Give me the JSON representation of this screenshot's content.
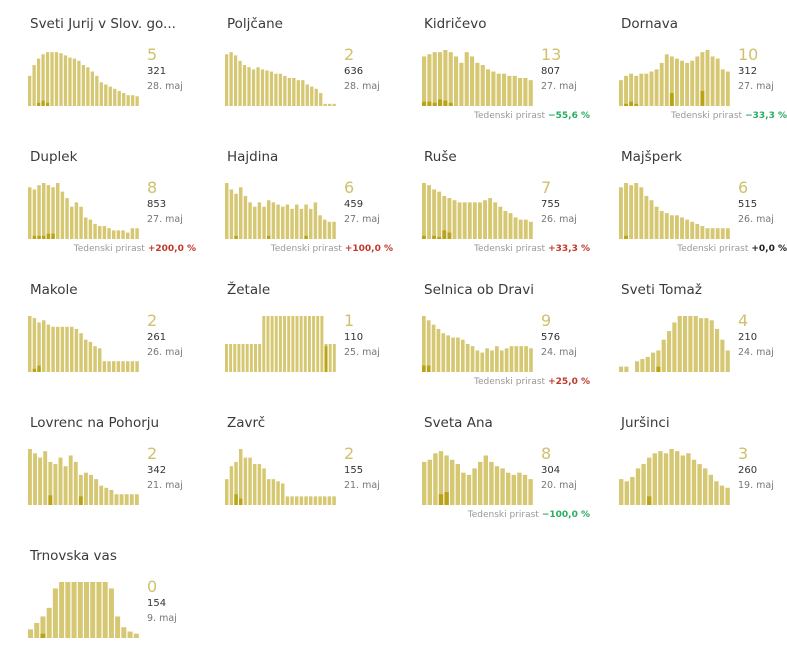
{
  "growth_label": "Tedenski prirast",
  "colors": {
    "bar": "#d6c772",
    "bar_dark": "#b9a418",
    "number": "#d1c06c"
  },
  "municipalities": [
    {
      "name": "Sveti Jurij v Slov. go...",
      "value": "5",
      "total": "321",
      "date": "28. maj",
      "growth": "",
      "bars": [
        28,
        38,
        44,
        48,
        50,
        50,
        50,
        49,
        47,
        45,
        44,
        42,
        38,
        36,
        32,
        28,
        22,
        20,
        18,
        16,
        14,
        12,
        10,
        10,
        9
      ],
      "dark": [
        0,
        0,
        3,
        5,
        3,
        0,
        0,
        0,
        0,
        0,
        0,
        0,
        0,
        0,
        0,
        0,
        0,
        0,
        0,
        0,
        0,
        0,
        0,
        0,
        0
      ]
    },
    {
      "name": "Poljčane",
      "value": "2",
      "total": "636",
      "date": "28. maj",
      "growth": "",
      "bars": [
        48,
        50,
        47,
        42,
        38,
        36,
        34,
        36,
        34,
        33,
        32,
        30,
        30,
        28,
        26,
        26,
        24,
        24,
        20,
        18,
        16,
        12,
        2,
        2,
        2
      ],
      "dark": [
        0,
        0,
        0,
        0,
        0,
        0,
        0,
        0,
        0,
        0,
        0,
        0,
        0,
        0,
        0,
        0,
        0,
        0,
        0,
        0,
        0,
        0,
        0,
        0,
        0
      ]
    },
    {
      "name": "Kidričevo",
      "value": "13",
      "total": "807",
      "date": "27. maj",
      "growth": "−55,6 %",
      "growth_class": "neg",
      "bars": [
        46,
        48,
        50,
        50,
        52,
        50,
        46,
        40,
        50,
        46,
        40,
        38,
        34,
        32,
        30,
        30,
        28,
        28,
        26,
        26,
        24
      ],
      "dark": [
        4,
        4,
        3,
        6,
        5,
        3,
        0,
        0,
        0,
        0,
        0,
        0,
        0,
        0,
        0,
        0,
        0,
        0,
        0,
        0,
        0
      ]
    },
    {
      "name": "Dornava",
      "value": "10",
      "total": "312",
      "date": "27. maj",
      "growth": "−33,3 %",
      "growth_class": "neg",
      "bars": [
        24,
        28,
        30,
        28,
        30,
        30,
        32,
        34,
        40,
        48,
        46,
        44,
        42,
        40,
        42,
        46,
        50,
        52,
        46,
        44,
        34,
        32
      ],
      "dark": [
        0,
        2,
        4,
        2,
        0,
        0,
        0,
        0,
        0,
        0,
        12,
        0,
        0,
        0,
        0,
        0,
        14,
        0,
        0,
        0,
        0,
        0
      ]
    },
    {
      "name": "Duplek",
      "value": "8",
      "total": "853",
      "date": "27. maj",
      "growth": "+200,0 %",
      "growth_class": "pos",
      "bars": [
        48,
        46,
        50,
        52,
        50,
        48,
        52,
        44,
        38,
        30,
        34,
        30,
        20,
        18,
        14,
        12,
        12,
        10,
        8,
        8,
        8,
        6,
        10,
        10
      ],
      "dark": [
        0,
        3,
        3,
        3,
        5,
        5,
        0,
        0,
        0,
        0,
        0,
        0,
        0,
        0,
        0,
        0,
        0,
        0,
        0,
        0,
        0,
        0,
        0,
        0
      ]
    },
    {
      "name": "Hajdina",
      "value": "6",
      "total": "459",
      "date": "27. maj",
      "growth": "+100,0 %",
      "growth_class": "pos",
      "bars": [
        52,
        46,
        42,
        48,
        40,
        34,
        30,
        34,
        30,
        36,
        34,
        32,
        30,
        32,
        28,
        32,
        28,
        32,
        28,
        34,
        22,
        18,
        16,
        16
      ],
      "dark": [
        0,
        0,
        3,
        0,
        0,
        0,
        0,
        0,
        0,
        3,
        0,
        0,
        0,
        0,
        0,
        0,
        0,
        3,
        0,
        0,
        0,
        0,
        0,
        0
      ]
    },
    {
      "name": "Ruše",
      "value": "7",
      "total": "755",
      "date": "26. maj",
      "growth": "+33,3 %",
      "growth_class": "pos",
      "bars": [
        52,
        50,
        46,
        44,
        40,
        38,
        36,
        34,
        34,
        34,
        34,
        34,
        36,
        38,
        34,
        30,
        26,
        24,
        20,
        18,
        18,
        16
      ],
      "dark": [
        3,
        0,
        3,
        2,
        8,
        6,
        0,
        0,
        0,
        0,
        0,
        0,
        0,
        0,
        0,
        0,
        0,
        0,
        0,
        0,
        0,
        0
      ]
    },
    {
      "name": "Majšperk",
      "value": "6",
      "total": "515",
      "date": "26. maj",
      "growth": "+0,0 %",
      "growth_class": "zero",
      "bars": [
        48,
        52,
        50,
        52,
        48,
        40,
        36,
        30,
        26,
        24,
        22,
        22,
        20,
        18,
        16,
        14,
        12,
        10,
        10,
        10,
        10,
        10
      ],
      "dark": [
        0,
        3,
        0,
        0,
        0,
        0,
        0,
        0,
        0,
        0,
        0,
        0,
        0,
        0,
        0,
        0,
        0,
        0,
        0,
        0,
        0,
        0
      ]
    },
    {
      "name": "Makole",
      "value": "2",
      "total": "261",
      "date": "26. maj",
      "growth": "",
      "bars": [
        52,
        50,
        46,
        48,
        44,
        42,
        42,
        42,
        42,
        42,
        40,
        36,
        30,
        28,
        24,
        22,
        10,
        10,
        10,
        10,
        10,
        10,
        10,
        10
      ],
      "dark": [
        0,
        3,
        6,
        0,
        0,
        0,
        0,
        0,
        0,
        0,
        0,
        0,
        0,
        0,
        0,
        0,
        0,
        0,
        0,
        0,
        0,
        0,
        0,
        0
      ]
    },
    {
      "name": "Žetale",
      "value": "1",
      "total": "110",
      "date": "25. maj",
      "growth": "",
      "bars": [
        26,
        26,
        26,
        26,
        26,
        26,
        26,
        26,
        26,
        52,
        52,
        52,
        52,
        52,
        52,
        52,
        52,
        52,
        52,
        52,
        52,
        52,
        52,
        52,
        26,
        26,
        26
      ],
      "dark": [
        0,
        0,
        0,
        0,
        0,
        0,
        0,
        0,
        0,
        0,
        0,
        0,
        0,
        0,
        0,
        0,
        0,
        0,
        0,
        0,
        0,
        0,
        0,
        0,
        24,
        0,
        0
      ]
    },
    {
      "name": "Selnica ob Dravi",
      "value": "9",
      "total": "576",
      "date": "24. maj",
      "growth": "+25,0 %",
      "growth_class": "pos",
      "bars": [
        52,
        48,
        44,
        40,
        36,
        34,
        32,
        32,
        30,
        26,
        24,
        20,
        18,
        22,
        20,
        24,
        20,
        22,
        24,
        24,
        24,
        24,
        22
      ],
      "dark": [
        6,
        6,
        0,
        0,
        0,
        0,
        0,
        0,
        0,
        0,
        0,
        0,
        0,
        0,
        0,
        0,
        0,
        0,
        0,
        0,
        0,
        0,
        0
      ]
    },
    {
      "name": "Sveti Tomaž",
      "value": "4",
      "total": "210",
      "date": "24. maj",
      "growth": "",
      "bars": [
        5,
        5,
        0,
        10,
        12,
        14,
        18,
        20,
        30,
        38,
        46,
        52,
        52,
        52,
        52,
        50,
        50,
        48,
        40,
        30,
        20
      ],
      "dark": [
        0,
        0,
        0,
        0,
        0,
        0,
        0,
        5,
        0,
        0,
        0,
        0,
        0,
        0,
        0,
        0,
        0,
        0,
        0,
        0,
        0
      ]
    },
    {
      "name": "Lovrenc na Pohorju",
      "value": "2",
      "total": "342",
      "date": "21. maj",
      "growth": "",
      "bars": [
        52,
        48,
        44,
        50,
        40,
        38,
        44,
        36,
        46,
        40,
        28,
        30,
        28,
        24,
        18,
        16,
        14,
        10,
        10,
        10,
        10,
        10
      ],
      "dark": [
        0,
        0,
        0,
        0,
        9,
        0,
        0,
        0,
        0,
        0,
        8,
        0,
        0,
        0,
        0,
        0,
        0,
        0,
        0,
        0,
        0,
        0
      ]
    },
    {
      "name": "Zavrč",
      "value": "2",
      "total": "155",
      "date": "21. maj",
      "growth": "",
      "bars": [
        24,
        36,
        40,
        52,
        44,
        44,
        38,
        38,
        34,
        24,
        24,
        22,
        20,
        8,
        8,
        8,
        8,
        8,
        8,
        8,
        8,
        8,
        8,
        8
      ],
      "dark": [
        0,
        0,
        10,
        6,
        0,
        0,
        0,
        0,
        0,
        0,
        0,
        0,
        0,
        0,
        0,
        0,
        0,
        0,
        0,
        0,
        0,
        0,
        0,
        0
      ]
    },
    {
      "name": "Sveta Ana",
      "value": "8",
      "total": "304",
      "date": "20. maj",
      "growth": "−100,0 %",
      "growth_class": "neg",
      "bars": [
        40,
        42,
        48,
        50,
        46,
        42,
        38,
        30,
        28,
        34,
        40,
        46,
        40,
        36,
        34,
        30,
        28,
        30,
        28,
        24
      ],
      "dark": [
        0,
        0,
        0,
        10,
        12,
        0,
        0,
        0,
        0,
        0,
        0,
        0,
        0,
        0,
        0,
        0,
        0,
        0,
        0,
        0
      ]
    },
    {
      "name": "Juršinci",
      "value": "3",
      "total": "260",
      "date": "19. maj",
      "growth": "",
      "bars": [
        24,
        22,
        26,
        34,
        38,
        44,
        48,
        50,
        48,
        52,
        50,
        46,
        48,
        42,
        38,
        34,
        28,
        22,
        18,
        16
      ],
      "dark": [
        0,
        0,
        0,
        0,
        0,
        8,
        0,
        0,
        0,
        0,
        0,
        0,
        0,
        0,
        0,
        0,
        0,
        0,
        0,
        0
      ]
    },
    {
      "name": "Trnovska vas",
      "value": "0",
      "total": "154",
      "date": "9. maj",
      "growth": "",
      "bars": [
        8,
        14,
        20,
        28,
        46,
        52,
        52,
        52,
        52,
        52,
        52,
        52,
        52,
        46,
        20,
        10,
        6,
        4
      ],
      "dark": [
        0,
        0,
        4,
        0,
        0,
        0,
        0,
        0,
        0,
        0,
        0,
        0,
        0,
        0,
        0,
        0,
        0,
        0
      ]
    }
  ]
}
